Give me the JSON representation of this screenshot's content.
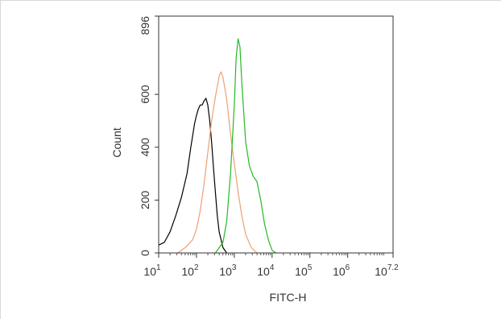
{
  "chart_data": {
    "type": "line",
    "title": "",
    "xlabel": "FITC-H",
    "ylabel": "Count",
    "x_scale": "log10",
    "xlim": [
      1,
      7.2
    ],
    "ylim": [
      0,
      896
    ],
    "x_ticks": [
      {
        "value": 1,
        "base": "10",
        "exp": "1"
      },
      {
        "value": 2,
        "base": "10",
        "exp": "2"
      },
      {
        "value": 3,
        "base": "10",
        "exp": "3"
      },
      {
        "value": 4,
        "base": "10",
        "exp": "4"
      },
      {
        "value": 5,
        "base": "10",
        "exp": "5"
      },
      {
        "value": 6,
        "base": "10",
        "exp": "6"
      },
      {
        "value": 7.2,
        "base": "10",
        "exp": "7.2"
      }
    ],
    "y_ticks": [
      {
        "value": 0,
        "label": "0"
      },
      {
        "value": 200,
        "label": "200"
      },
      {
        "value": 400,
        "label": "400"
      },
      {
        "value": 600,
        "label": "600"
      },
      {
        "value": 896,
        "label": "896"
      }
    ],
    "grid": false,
    "legend": "none",
    "series": [
      {
        "color": "#000000",
        "x": [
          1.0,
          1.15,
          1.3,
          1.45,
          1.6,
          1.75,
          1.85,
          1.95,
          2.0,
          2.05,
          2.1,
          2.15,
          2.2,
          2.25,
          2.3,
          2.35,
          2.4,
          2.45,
          2.5,
          2.55,
          2.6,
          2.7,
          2.8
        ],
        "y": [
          30,
          40,
          80,
          140,
          210,
          300,
          400,
          490,
          520,
          545,
          560,
          560,
          575,
          585,
          560,
          500,
          420,
          320,
          230,
          140,
          80,
          20,
          0
        ]
      },
      {
        "color": "#f0a070",
        "x": [
          1.5,
          1.7,
          1.9,
          2.0,
          2.1,
          2.2,
          2.3,
          2.4,
          2.5,
          2.6,
          2.65,
          2.7,
          2.8,
          2.9,
          3.0,
          3.1,
          3.2,
          3.3,
          3.45,
          3.6
        ],
        "y": [
          0,
          20,
          50,
          90,
          160,
          260,
          380,
          500,
          590,
          670,
          685,
          665,
          580,
          450,
          340,
          230,
          140,
          70,
          20,
          0
        ]
      },
      {
        "color": "#22bb22",
        "x": [
          2.5,
          2.7,
          2.8,
          2.9,
          3.0,
          3.05,
          3.1,
          3.15,
          3.2,
          3.3,
          3.4,
          3.5,
          3.6,
          3.7,
          3.8,
          3.9,
          4.0,
          4.1
        ],
        "y": [
          0,
          40,
          120,
          300,
          560,
          740,
          810,
          780,
          640,
          420,
          330,
          290,
          270,
          200,
          110,
          50,
          10,
          0
        ]
      }
    ]
  }
}
